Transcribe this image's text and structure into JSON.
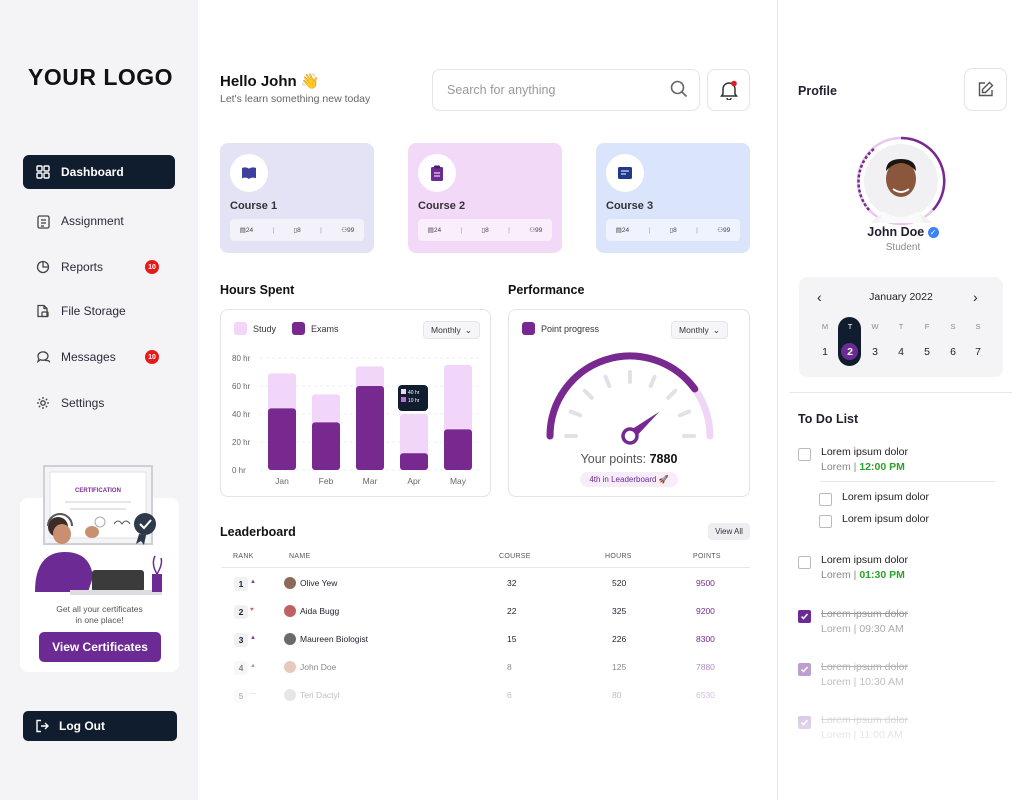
{
  "sidebar": {
    "logo": "YOUR LOGO",
    "items": [
      {
        "label": "Dashboard",
        "icon": "dashboard-grid-icon",
        "active": true
      },
      {
        "label": "Assignment",
        "icon": "clipboard-icon"
      },
      {
        "label": "Reports",
        "icon": "pie-chart-icon",
        "badge": "10"
      },
      {
        "label": "File Storage",
        "icon": "file-storage-icon"
      },
      {
        "label": "Messages",
        "icon": "chat-icon",
        "badge": "10"
      },
      {
        "label": "Settings",
        "icon": "gear-icon"
      }
    ],
    "certificate": {
      "banner": "CERTIFICATION",
      "text_line1": "Get all your certificates",
      "text_line2": "in one place!",
      "button": "View Certificates"
    },
    "logout": "Log Out"
  },
  "header": {
    "greeting": "Hello John 👋",
    "subtitle": "Let's learn something new today",
    "search_placeholder": "Search for anything"
  },
  "courses": [
    {
      "title": "Course 1",
      "lessons": "24",
      "assignments": "8",
      "students": "99",
      "color": "#e4e2f5"
    },
    {
      "title": "Course 2",
      "lessons": "24",
      "assignments": "8",
      "students": "99",
      "color": "#f3d9f8"
    },
    {
      "title": "Course 3",
      "lessons": "24",
      "assignments": "8",
      "students": "99",
      "color": "#dae4fb"
    }
  ],
  "hours_spent": {
    "title": "Hours Spent",
    "dropdown": "Monthly",
    "legend_study": "Study",
    "legend_exams": "Exams",
    "tooltip_study": "40 hr",
    "tooltip_exams": "10 hr"
  },
  "chart_data": {
    "type": "bar",
    "stacked": true,
    "categories": [
      "Jan",
      "Feb",
      "Mar",
      "Apr",
      "May"
    ],
    "series": [
      {
        "name": "Exams",
        "values": [
          44,
          34,
          60,
          12,
          29
        ],
        "color": "#77298f"
      },
      {
        "name": "Study",
        "values": [
          25,
          20,
          14,
          28,
          46
        ],
        "color": "#f2d6f9"
      }
    ],
    "y_ticks": [
      "80 hr",
      "60 hr",
      "40 hr",
      "20 hr",
      "0 hr"
    ],
    "ylim": [
      0,
      80
    ],
    "grid": true,
    "legend": "top-left"
  },
  "performance": {
    "title": "Performance",
    "dropdown": "Monthly",
    "legend": "Point progress",
    "points_label": "Your points:",
    "points_value": "7880",
    "leaderboard_note": "4th in Leaderboard 🚀",
    "progress_fraction": 0.8
  },
  "leaderboard": {
    "title": "Leaderboard",
    "view_all": "View All",
    "columns": [
      "RANK",
      "NAME",
      "COURSE",
      "HOURS",
      "POINTS"
    ],
    "rows": [
      {
        "rank": "1",
        "trend": "up",
        "name": "Olive Yew",
        "course": "32",
        "hours": "520",
        "points": "9500"
      },
      {
        "rank": "2",
        "trend": "down",
        "name": "Aida Bugg",
        "course": "22",
        "hours": "325",
        "points": "9200"
      },
      {
        "rank": "3",
        "trend": "up",
        "name": "Maureen Biologist",
        "course": "15",
        "hours": "226",
        "points": "8300"
      },
      {
        "rank": "4",
        "trend": "up",
        "name": "John Doe",
        "course": "8",
        "hours": "125",
        "points": "7880"
      },
      {
        "rank": "5",
        "trend": "none",
        "name": "Teri Dactyl",
        "course": "6",
        "hours": "80",
        "points": "6530"
      }
    ]
  },
  "profile": {
    "title": "Profile",
    "name": "John Doe",
    "role": "Student"
  },
  "calendar": {
    "month": "January 2022",
    "weekdays": [
      "M",
      "T",
      "W",
      "T",
      "F",
      "S",
      "S"
    ],
    "days": [
      "1",
      "2",
      "3",
      "4",
      "5",
      "6",
      "7"
    ],
    "selected_day": "2"
  },
  "todo": {
    "title": "To Do List",
    "items": [
      {
        "text": "Lorem ipsum dolor",
        "prefix": "Lorem | ",
        "time": "12:00 PM",
        "done": false
      },
      {
        "text": "Lorem ipsum dolor",
        "sub": true,
        "done": false
      },
      {
        "text": "Lorem ipsum dolor",
        "sub": true,
        "done": false
      },
      {
        "text": "Lorem ipsum dolor",
        "prefix": "Lorem | ",
        "time": "01:30 PM",
        "done": false
      },
      {
        "text": "Lorem ipsum dolor",
        "prefix": "Lorem | ",
        "time": "09:30 AM",
        "done": true
      },
      {
        "text": "Lorem ipsum dolor",
        "prefix": "Lorem | ",
        "time": "10:30 AM",
        "done": true
      },
      {
        "text": "Lorem ipsum dolor",
        "prefix": "Lorem | ",
        "time": "11:00 AM",
        "done": true
      }
    ]
  }
}
